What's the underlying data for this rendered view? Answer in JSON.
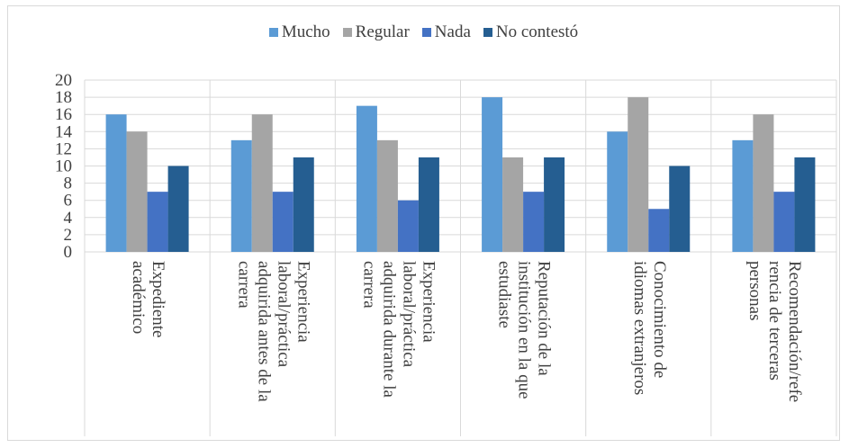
{
  "chart_data": {
    "type": "bar",
    "title": "",
    "xlabel": "",
    "ylabel": "",
    "ylim": [
      0,
      20
    ],
    "yticks": [
      0,
      2,
      4,
      6,
      8,
      10,
      12,
      14,
      16,
      18,
      20
    ],
    "grid": true,
    "legend_position": "top",
    "categories": [
      [
        "Expediente",
        "académico"
      ],
      [
        "Experiencia",
        "laboral/práctica",
        "adquirida antes de la",
        "carrera"
      ],
      [
        "Experiencia",
        "laboral/práctica",
        "adquirida durante la",
        "carrera"
      ],
      [
        "Reputación de la",
        "institución en la que",
        "estudiaste"
      ],
      [
        "Conocimiento de",
        "idiomas extranjeros"
      ],
      [
        "Recomendación/refe",
        "rencia de terceras",
        "personas"
      ]
    ],
    "series": [
      {
        "name": "Mucho",
        "color": "#5b9bd5",
        "values": [
          16,
          13,
          17,
          18,
          14,
          13
        ]
      },
      {
        "name": "Regular",
        "color": "#a5a5a5",
        "values": [
          14,
          16,
          13,
          11,
          18,
          16
        ]
      },
      {
        "name": "Nada",
        "color": "#4472c4",
        "values": [
          7,
          7,
          6,
          7,
          5,
          7
        ]
      },
      {
        "name": "No contestó",
        "color": "#255e91",
        "values": [
          10,
          11,
          11,
          11,
          10,
          11
        ]
      }
    ]
  }
}
